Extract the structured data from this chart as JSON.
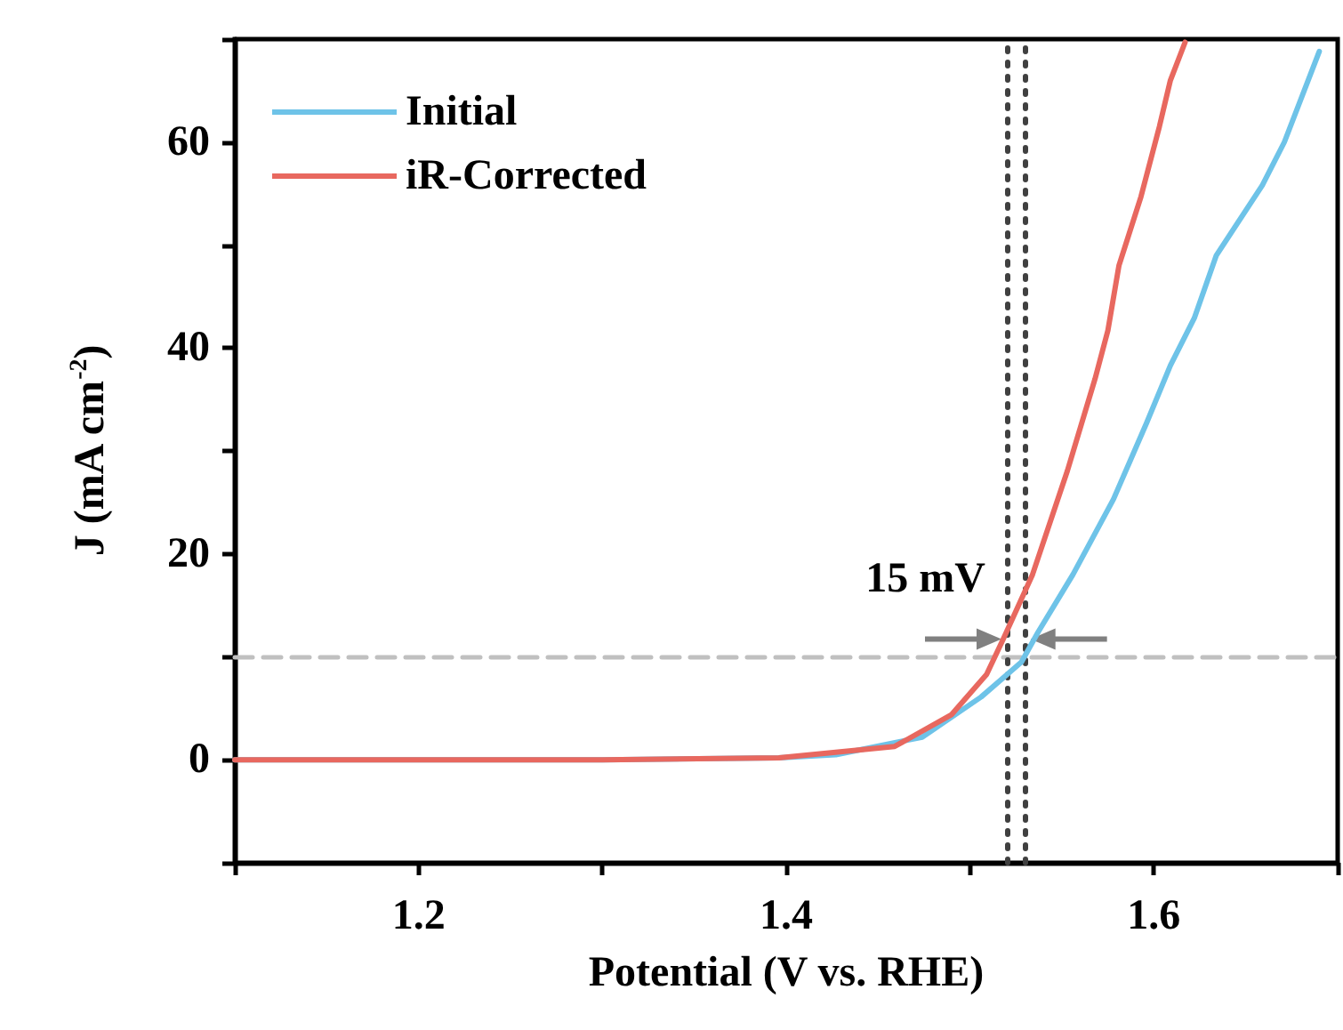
{
  "chart_data": {
    "type": "line",
    "xlabel": "Potential (V vs. RHE)",
    "ylabel": "J (mA cm$^{-2}$)",
    "xlim": [
      1.1,
      1.7
    ],
    "xticks": [
      {
        "value": 1.1,
        "label": null
      },
      1.2,
      {
        "value": 1.3,
        "label": null
      },
      1.4,
      {
        "value": 1.5,
        "label": null
      },
      1.6,
      {
        "value": 1.7,
        "label": null
      }
    ],
    "ylim": [
      -10,
      70
    ],
    "yticks": [
      {
        "value": -10,
        "label": null
      },
      0,
      {
        "value": 10,
        "label": null
      },
      20,
      {
        "value": 30,
        "label": null
      },
      40,
      {
        "value": 50,
        "label": null
      },
      60,
      {
        "value": 70,
        "label": null
      }
    ],
    "series": [
      {
        "name": "Initial",
        "color": "#6ec3e8",
        "x": [
          1.1,
          1.3,
          1.396,
          1.427,
          1.474,
          1.506,
          1.528,
          1.537,
          1.556,
          1.578,
          1.596,
          1.609,
          1.622,
          1.634,
          1.659,
          1.671,
          1.69
        ],
        "values": [
          0,
          0,
          0.2,
          0.5,
          2.2,
          6.1,
          9.5,
          12.4,
          18,
          25.3,
          32.7,
          38.3,
          42.9,
          49,
          55.8,
          60,
          68.8
        ]
      },
      {
        "name": "iR-Corrected",
        "color": "#e8685f",
        "x": [
          1.1,
          1.3,
          1.396,
          1.459,
          1.49,
          1.509,
          1.518,
          1.534,
          1.553,
          1.568,
          1.575,
          1.581,
          1.593,
          1.603,
          1.609,
          1.617
        ],
        "values": [
          0,
          0,
          0.2,
          1.3,
          4.4,
          8.3,
          11.7,
          18,
          28.1,
          37,
          41.7,
          48,
          54.7,
          61.5,
          66,
          69.7
        ]
      }
    ],
    "ref_lines": [
      {
        "axis": "y",
        "value": 10,
        "color": "#c0c0c0",
        "line_style": "dashed"
      },
      {
        "axis": "x",
        "value": 1.52,
        "color": "#404040",
        "line_style": "dotted"
      },
      {
        "axis": "x",
        "value": 1.53,
        "color": "#404040",
        "line_style": "dotted"
      }
    ],
    "annotations": [
      "15 mV"
    ],
    "legend": "top left",
    "grid": false,
    "marker": "none",
    "line_style": "solid"
  }
}
